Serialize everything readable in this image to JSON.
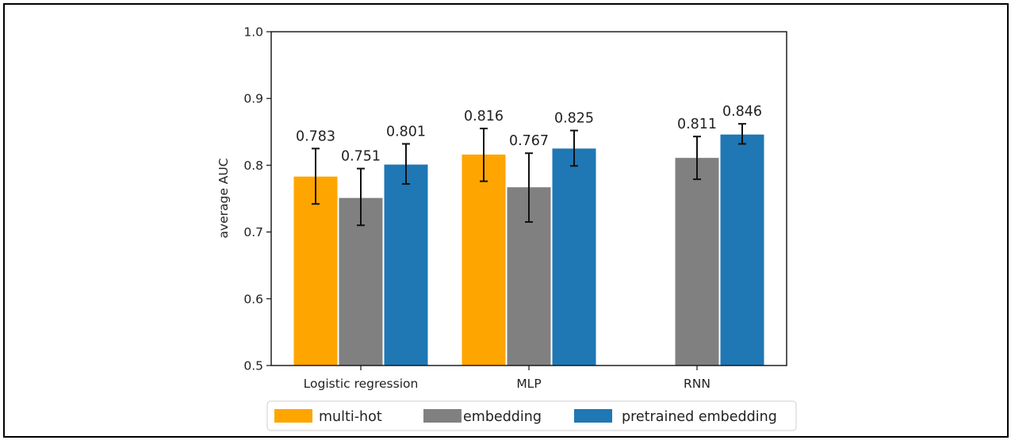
{
  "chart_data": {
    "type": "bar",
    "categories": [
      "Logistic regression",
      "MLP",
      "RNN"
    ],
    "ylabel": "average AUC",
    "ylim": [
      0.5,
      1.0
    ],
    "yticks": [
      "0.5",
      "0.6",
      "0.7",
      "0.8",
      "0.9",
      "1.0"
    ],
    "grid": false,
    "legend_position": "bottom",
    "series": [
      {
        "name": "multi-hot",
        "color": "#FFA500",
        "values": [
          0.783,
          0.816,
          null
        ],
        "labels": [
          "0.783",
          "0.816",
          ""
        ],
        "err_low": [
          0.742,
          0.776,
          null
        ],
        "err_high": [
          0.825,
          0.855,
          null
        ]
      },
      {
        "name": "embedding",
        "color": "#808080",
        "values": [
          0.751,
          0.767,
          0.811
        ],
        "labels": [
          "0.751",
          "0.767",
          "0.811"
        ],
        "err_low": [
          0.71,
          0.715,
          0.779
        ],
        "err_high": [
          0.795,
          0.818,
          0.843
        ]
      },
      {
        "name": "pretrained embedding",
        "color": "#1F77B4",
        "values": [
          0.801,
          0.825,
          0.846
        ],
        "labels": [
          "0.801",
          "0.825",
          "0.846"
        ],
        "err_low": [
          0.772,
          0.799,
          0.832
        ],
        "err_high": [
          0.832,
          0.852,
          0.862
        ]
      }
    ]
  }
}
